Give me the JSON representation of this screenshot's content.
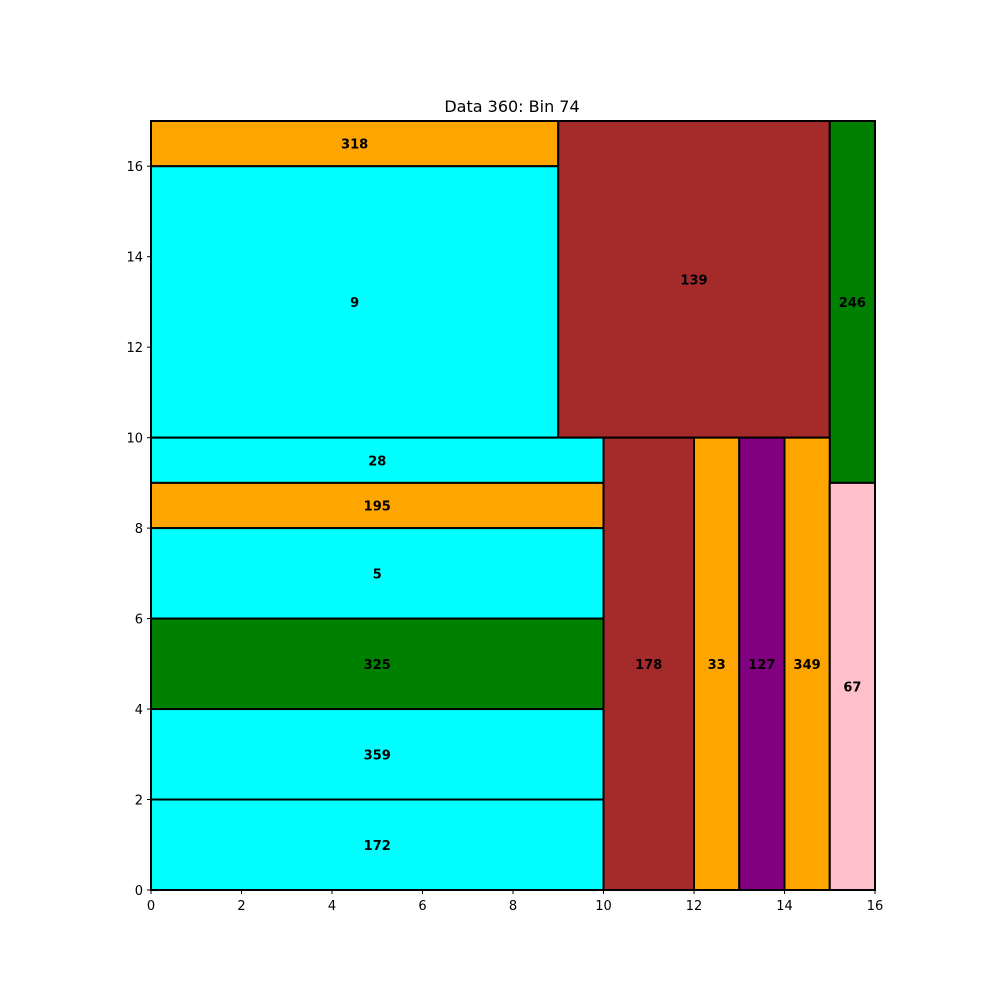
{
  "chart_data": {
    "type": "rectangle-packing",
    "title": "Data 360: Bin 74",
    "xlabel": "",
    "ylabel": "",
    "xlim": [
      0,
      16
    ],
    "ylim": [
      0,
      17
    ],
    "xticks": [
      0,
      2,
      4,
      6,
      8,
      10,
      12,
      14,
      16
    ],
    "yticks": [
      0,
      2,
      4,
      6,
      8,
      10,
      12,
      14,
      16
    ],
    "grid": false,
    "items": [
      {
        "label": "318",
        "x": 0,
        "y": 16,
        "w": 9,
        "h": 1,
        "color": "#FFA500"
      },
      {
        "label": "9",
        "x": 0,
        "y": 10,
        "w": 9,
        "h": 6,
        "color": "#00FFFF"
      },
      {
        "label": "139",
        "x": 9,
        "y": 10,
        "w": 6,
        "h": 7,
        "color": "#A52A2A"
      },
      {
        "label": "246",
        "x": 15,
        "y": 9,
        "w": 1,
        "h": 8,
        "color": "#008000"
      },
      {
        "label": "28",
        "x": 0,
        "y": 9,
        "w": 10,
        "h": 1,
        "color": "#00FFFF"
      },
      {
        "label": "195",
        "x": 0,
        "y": 8,
        "w": 10,
        "h": 1,
        "color": "#FFA500"
      },
      {
        "label": "5",
        "x": 0,
        "y": 6,
        "w": 10,
        "h": 2,
        "color": "#00FFFF"
      },
      {
        "label": "325",
        "x": 0,
        "y": 4,
        "w": 10,
        "h": 2,
        "color": "#008000"
      },
      {
        "label": "359",
        "x": 0,
        "y": 2,
        "w": 10,
        "h": 2,
        "color": "#00FFFF"
      },
      {
        "label": "172",
        "x": 0,
        "y": 0,
        "w": 10,
        "h": 2,
        "color": "#00FFFF"
      },
      {
        "label": "178",
        "x": 10,
        "y": 0,
        "w": 2,
        "h": 10,
        "color": "#A52A2A"
      },
      {
        "label": "33",
        "x": 12,
        "y": 0,
        "w": 1,
        "h": 10,
        "color": "#FFA500"
      },
      {
        "label": "127",
        "x": 13,
        "y": 0,
        "w": 1,
        "h": 10,
        "color": "#800080"
      },
      {
        "label": "349",
        "x": 14,
        "y": 0,
        "w": 1,
        "h": 10,
        "color": "#FFA500"
      },
      {
        "label": "67",
        "x": 15,
        "y": 0,
        "w": 1,
        "h": 9,
        "color": "#FFC0CB"
      }
    ]
  }
}
